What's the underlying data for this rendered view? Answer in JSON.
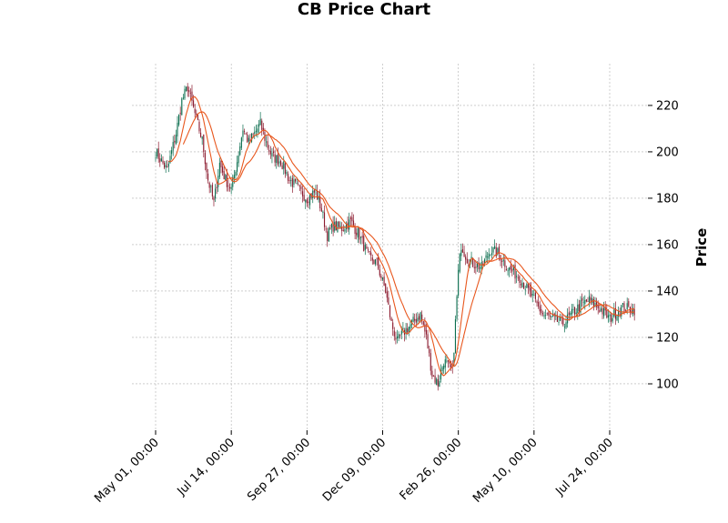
{
  "chart_data": {
    "type": "candlestick",
    "title": "CB Price Chart",
    "xlabel": "",
    "ylabel": "Price",
    "ylim": [
      80,
      238
    ],
    "y_ticks": [
      100,
      120,
      140,
      160,
      180,
      200,
      220
    ],
    "x_ticks": [
      "May 01, 00:00",
      "Jul 14, 00:00",
      "Sep 27, 00:00",
      "Dec 09, 00:00",
      "Feb 26, 00:00",
      "May 10, 00:00",
      "Jul 24, 00:00"
    ],
    "x_tick_positions": [
      0,
      52,
      104,
      156,
      208,
      260,
      312
    ],
    "n_bars": 330,
    "grid": true,
    "y_axis_side": "right",
    "colors": {
      "up": "#0b6e4f",
      "down": "#8b1a2e",
      "ma": "#e8571e",
      "grid": "#b0b0b0"
    },
    "close_anchors": [
      [
        0,
        200
      ],
      [
        8,
        192
      ],
      [
        14,
        208
      ],
      [
        18,
        222
      ],
      [
        22,
        228
      ],
      [
        28,
        214
      ],
      [
        32,
        205
      ],
      [
        36,
        188
      ],
      [
        40,
        178
      ],
      [
        44,
        195
      ],
      [
        48,
        188
      ],
      [
        52,
        184
      ],
      [
        56,
        196
      ],
      [
        60,
        210
      ],
      [
        64,
        204
      ],
      [
        68,
        208
      ],
      [
        72,
        212
      ],
      [
        76,
        204
      ],
      [
        80,
        198
      ],
      [
        86,
        196
      ],
      [
        92,
        188
      ],
      [
        98,
        184
      ],
      [
        104,
        180
      ],
      [
        110,
        183
      ],
      [
        114,
        175
      ],
      [
        118,
        164
      ],
      [
        122,
        168
      ],
      [
        128,
        167
      ],
      [
        134,
        170
      ],
      [
        140,
        164
      ],
      [
        146,
        155
      ],
      [
        152,
        152
      ],
      [
        158,
        140
      ],
      [
        162,
        126
      ],
      [
        166,
        118
      ],
      [
        170,
        122
      ],
      [
        176,
        126
      ],
      [
        182,
        130
      ],
      [
        186,
        120
      ],
      [
        190,
        104
      ],
      [
        194,
        100
      ],
      [
        198,
        110
      ],
      [
        204,
        105
      ],
      [
        208,
        148
      ],
      [
        210,
        160
      ],
      [
        214,
        154
      ],
      [
        218,
        152
      ],
      [
        224,
        150
      ],
      [
        230,
        158
      ],
      [
        236,
        156
      ],
      [
        242,
        150
      ],
      [
        250,
        146
      ],
      [
        258,
        138
      ],
      [
        266,
        130
      ],
      [
        272,
        128
      ],
      [
        280,
        126
      ],
      [
        286,
        130
      ],
      [
        292,
        134
      ],
      [
        298,
        136
      ],
      [
        306,
        132
      ],
      [
        312,
        128
      ],
      [
        320,
        133
      ],
      [
        329,
        132
      ]
    ],
    "ma_windows": [
      10,
      20
    ]
  }
}
